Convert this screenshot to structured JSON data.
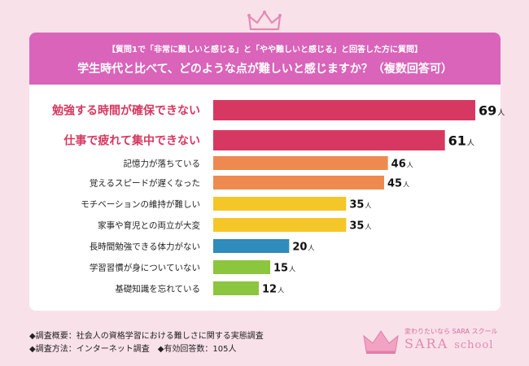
{
  "header": {
    "question_line": "【質問1で「非常に難しいと感じる」と「やや難しいと感じる」と回答した方に質問】",
    "question_main": "学生時代と比べて、どのような点が難しいと感じますか？（複数回答可）"
  },
  "chart_data": {
    "type": "bar",
    "orientation": "horizontal",
    "title": "学生時代と比べて、どのような点が難しいと感じますか？（複数回答可）",
    "unit": "人",
    "xlim": [
      0,
      69
    ],
    "categories": [
      "勉強する時間が確保できない",
      "仕事で疲れて集中できない",
      "記憶力が落ちている",
      "覚えるスピードが遅くなった",
      "モチベーションの維持が難しい",
      "家事や育児との両立が大変",
      "長時間勉強できる体力がない",
      "学習習慣が身についていない",
      "基礎知識を忘れている"
    ],
    "values": [
      69,
      61,
      46,
      45,
      35,
      35,
      20,
      15,
      12
    ],
    "colors": [
      "#d63861",
      "#d63861",
      "#ee8a50",
      "#ee8a50",
      "#f5c627",
      "#f5c627",
      "#2f8cbc",
      "#8cc53e",
      "#8cc53e"
    ],
    "highlight_label_color": "#d63861"
  },
  "footer": {
    "overview": "◆調査概要：社会人の資格学習における難しさに関する実態調査",
    "method": "◆調査方法：インターネット調査　◆有効回答数：105人"
  },
  "logo": {
    "tagline": "変わりたいなら SARA スクール",
    "name": "SARA",
    "suffix": "school"
  }
}
